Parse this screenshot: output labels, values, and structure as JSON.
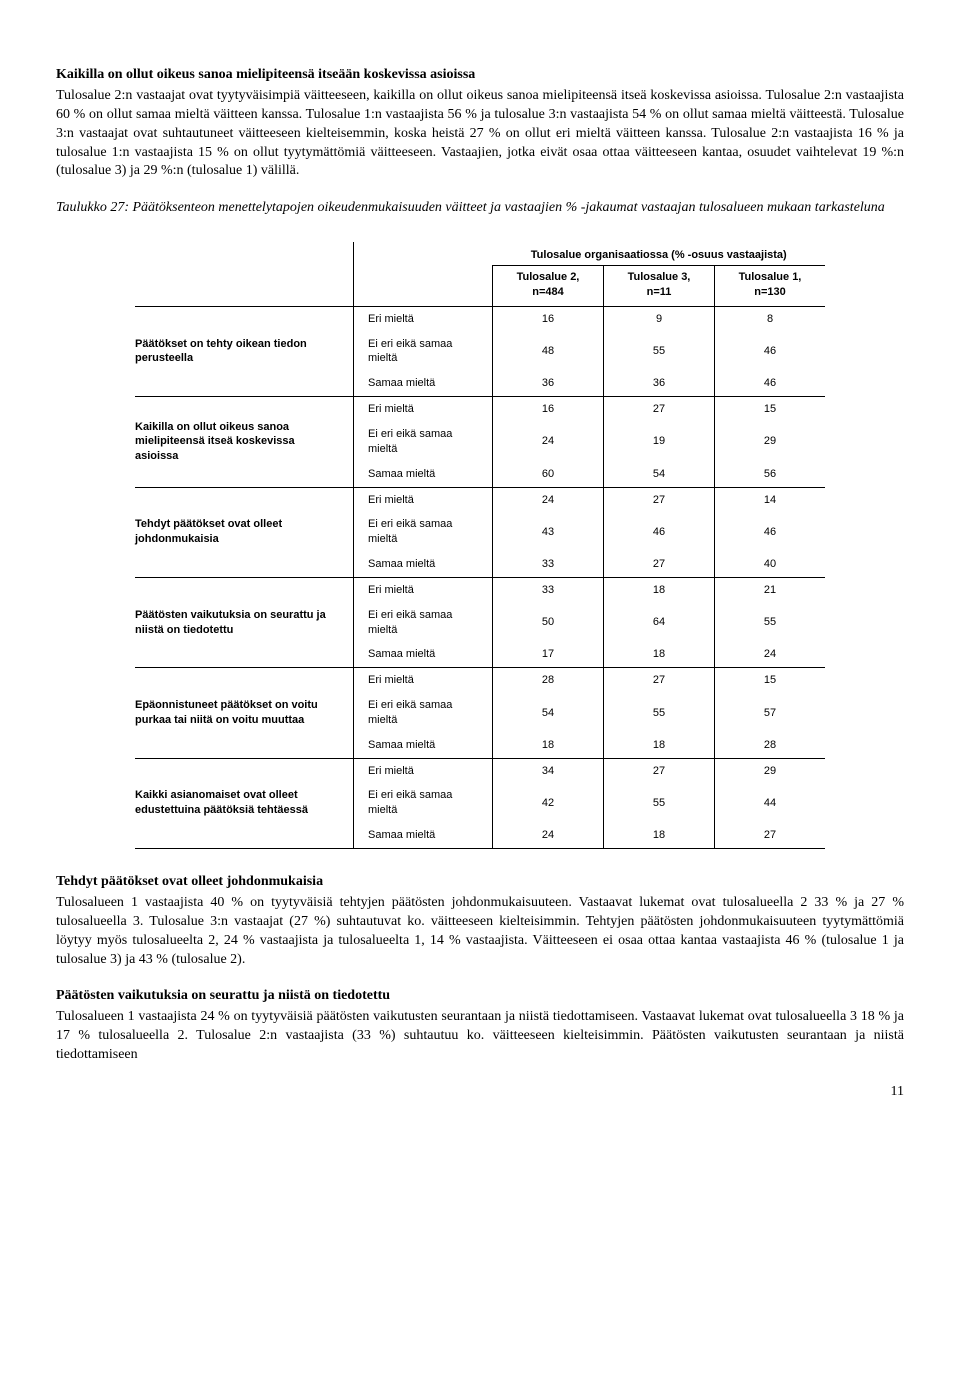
{
  "h1": "Kaikilla on ollut oikeus sanoa mielipiteensä itseään koskevissa asioissa",
  "p1": "Tulosalue 2:n vastaajat ovat tyytyväisimpiä väitteeseen, kaikilla on ollut oikeus sanoa mielipiteensä itseä koskevissa asioissa. Tulosalue 2:n vastaajista 60 % on ollut samaa mieltä väitteen kanssa. Tulosalue 1:n vastaajista 56 % ja tulosalue 3:n vastaajista 54 % on ollut samaa mieltä väitteestä. Tulosalue 3:n vastaajat ovat suhtautuneet väitteeseen kielteisemmin, koska heistä 27 % on ollut eri mieltä väitteen kanssa. Tulosalue 2:n vastaajista 16 % ja tulosalue 1:n vastaajista 15 % on ollut tyytymättömiä väitteeseen. Vastaajien, jotka eivät osaa ottaa väitteeseen kantaa, osuudet vaihtelevat 19 %:n (tulosalue 3) ja 29 %:n (tulosalue 1) välillä.",
  "caption": "Taulukko 27: Päätöksenteon menettelytapojen oikeudenmukaisuuden väitteet ja vastaajien % -jakaumat vastaajan tulosalueen mukaan tarkasteluna",
  "tbl": {
    "span_header": "Tulosalue organisaatiossa (% -osuus vastaajista)",
    "cols": [
      "Tulosalue 2, n=484",
      "Tulosalue 3, n=11",
      "Tulosalue 1, n=130"
    ],
    "responses": [
      "Eri mieltä",
      "Ei eri eikä samaa mieltä",
      "Samaa mieltä"
    ],
    "groups": [
      {
        "label": "Päätökset on tehty oikean tiedon perusteella",
        "rows": [
          [
            16,
            9,
            8
          ],
          [
            48,
            55,
            46
          ],
          [
            36,
            36,
            46
          ]
        ]
      },
      {
        "label": "Kaikilla on ollut oikeus sanoa mielipiteensä itseä koskevissa asioissa",
        "rows": [
          [
            16,
            27,
            15
          ],
          [
            24,
            19,
            29
          ],
          [
            60,
            54,
            56
          ]
        ]
      },
      {
        "label": "Tehdyt päätökset ovat olleet johdonmukaisia",
        "rows": [
          [
            24,
            27,
            14
          ],
          [
            43,
            46,
            46
          ],
          [
            33,
            27,
            40
          ]
        ]
      },
      {
        "label": "Päätösten vaikutuksia on seurattu ja niistä on tiedotettu",
        "rows": [
          [
            33,
            18,
            21
          ],
          [
            50,
            64,
            55
          ],
          [
            17,
            18,
            24
          ]
        ]
      },
      {
        "label": "Epäonnistuneet päätökset on voitu purkaa tai niitä on voitu muuttaa",
        "rows": [
          [
            28,
            27,
            15
          ],
          [
            54,
            55,
            57
          ],
          [
            18,
            18,
            28
          ]
        ]
      },
      {
        "label": "Kaikki asianomaiset ovat olleet edustettuina päätöksiä tehtäessä",
        "rows": [
          [
            34,
            27,
            29
          ],
          [
            42,
            55,
            44
          ],
          [
            24,
            18,
            27
          ]
        ]
      }
    ]
  },
  "h2": "Tehdyt päätökset ovat olleet johdonmukaisia",
  "p2": "Tulosalueen 1 vastaajista 40 % on tyytyväisiä tehtyjen päätösten johdonmukaisuuteen. Vastaavat lukemat ovat tulosalueella 2 33 % ja 27 % tulosalueella 3.  Tulosalue 3:n vastaajat (27 %) suhtautuvat ko. väitteeseen kielteisimmin. Tehtyjen päätösten johdonmukaisuuteen tyytymättömiä löytyy myös tulosalueelta 2, 24 % vastaajista ja tulosalueelta 1, 14 % vastaajista. Väitteeseen ei osaa ottaa kantaa vastaajista 46 % (tulosalue 1 ja tulosalue 3) ja 43 % (tulosalue 2).",
  "h3": "Päätösten vaikutuksia on seurattu ja niistä on tiedotettu",
  "p3": "Tulosalueen 1 vastaajista 24 % on tyytyväisiä päätösten vaikutusten seurantaan ja niistä tiedottamiseen. Vastaavat lukemat ovat tulosalueella 3 18 % ja 17 % tulosalueella 2.  Tulosalue 2:n vastaajista (33 %) suhtautuu ko. väitteeseen kielteisimmin. Päätösten vaikutusten seurantaan ja niistä tiedottamiseen",
  "page": "11"
}
